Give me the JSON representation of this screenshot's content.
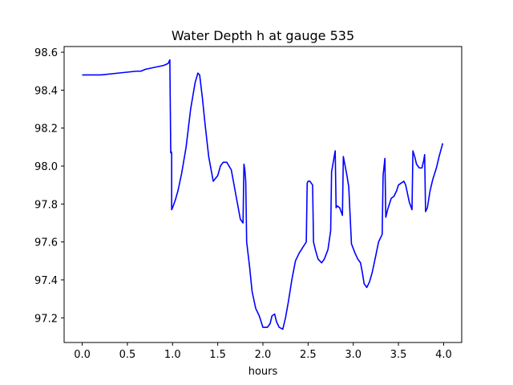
{
  "chart_data": {
    "type": "line",
    "title": "Water Depth h at gauge 535",
    "xlabel": "hours",
    "ylabel": "",
    "xlim": [
      -0.2,
      4.2
    ],
    "ylim": [
      97.07,
      98.63
    ],
    "xticks": [
      0.0,
      0.5,
      1.0,
      1.5,
      2.0,
      2.5,
      3.0,
      3.5,
      4.0
    ],
    "xtick_labels": [
      "0.0",
      "0.5",
      "1.0",
      "1.5",
      "2.0",
      "2.5",
      "3.0",
      "3.5",
      "4.0"
    ],
    "yticks": [
      97.2,
      97.4,
      97.6,
      97.8,
      98.0,
      98.2,
      98.4,
      98.6
    ],
    "ytick_labels": [
      "97.2",
      "97.4",
      "97.6",
      "97.8",
      "98.0",
      "98.2",
      "98.4",
      "98.6"
    ],
    "grid": false,
    "series": [
      {
        "color": "#0000ff",
        "x": [
          0.0,
          0.2,
          0.4,
          0.6,
          0.65,
          0.7,
          0.8,
          0.9,
          0.95,
          0.97,
          0.98,
          0.98,
          0.99,
          0.99,
          1.0,
          1.03,
          1.06,
          1.1,
          1.15,
          1.2,
          1.25,
          1.28,
          1.3,
          1.33,
          1.36,
          1.4,
          1.45,
          1.5,
          1.53,
          1.56,
          1.6,
          1.65,
          1.7,
          1.75,
          1.78,
          1.79,
          1.8,
          1.81,
          1.82,
          1.85,
          1.88,
          1.92,
          1.96,
          2.0,
          2.05,
          2.08,
          2.1,
          2.13,
          2.15,
          2.18,
          2.22,
          2.25,
          2.28,
          2.32,
          2.36,
          2.4,
          2.44,
          2.48,
          2.49,
          2.5,
          2.52,
          2.55,
          2.56,
          2.58,
          2.61,
          2.65,
          2.68,
          2.72,
          2.75,
          2.76,
          2.8,
          2.81,
          2.82,
          2.85,
          2.88,
          2.89,
          2.93,
          2.95,
          2.98,
          3.02,
          3.05,
          3.08,
          3.1,
          3.12,
          3.15,
          3.18,
          3.21,
          3.25,
          3.28,
          3.32,
          3.33,
          3.35,
          3.36,
          3.38,
          3.4,
          3.42,
          3.45,
          3.48,
          3.5,
          3.53,
          3.56,
          3.58,
          3.62,
          3.65,
          3.66,
          3.68,
          3.7,
          3.73,
          3.76,
          3.78,
          3.79,
          3.8,
          3.82,
          3.85,
          3.88,
          3.92,
          3.95,
          3.99
        ],
        "y": [
          98.48,
          98.48,
          98.49,
          98.5,
          98.5,
          98.51,
          98.52,
          98.53,
          98.54,
          98.56,
          98.07,
          98.08,
          98.07,
          97.77,
          97.78,
          97.82,
          97.87,
          97.96,
          98.1,
          98.3,
          98.44,
          98.49,
          98.48,
          98.36,
          98.22,
          98.05,
          97.92,
          97.95,
          98.0,
          98.02,
          98.02,
          97.98,
          97.85,
          97.72,
          97.7,
          98.01,
          97.98,
          97.92,
          97.6,
          97.48,
          97.34,
          97.25,
          97.21,
          97.15,
          97.15,
          97.17,
          97.21,
          97.22,
          97.18,
          97.15,
          97.14,
          97.2,
          97.28,
          97.4,
          97.5,
          97.54,
          97.57,
          97.6,
          97.91,
          97.92,
          97.92,
          97.9,
          97.6,
          97.56,
          97.51,
          97.49,
          97.51,
          97.56,
          97.66,
          97.97,
          98.08,
          97.78,
          97.79,
          97.78,
          97.74,
          98.05,
          97.95,
          97.89,
          97.59,
          97.54,
          97.51,
          97.49,
          97.44,
          97.38,
          97.36,
          97.39,
          97.44,
          97.53,
          97.6,
          97.64,
          97.95,
          98.04,
          97.73,
          97.77,
          97.8,
          97.83,
          97.84,
          97.87,
          97.9,
          97.91,
          97.92,
          97.9,
          97.81,
          97.77,
          98.08,
          98.05,
          98.01,
          97.99,
          97.99,
          98.03,
          98.06,
          97.76,
          97.78,
          97.87,
          97.93,
          97.99,
          98.05,
          98.12
        ]
      }
    ]
  }
}
